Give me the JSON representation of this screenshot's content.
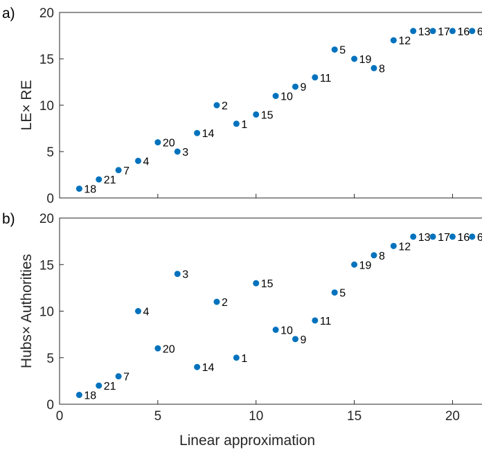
{
  "chart_data": [
    {
      "type": "scatter",
      "panel_label": "a)",
      "xlabel": "",
      "ylabel": "LE× RE",
      "xlim": [
        0,
        21.5
      ],
      "ylim": [
        0,
        20
      ],
      "x_ticks": [
        0,
        5,
        10,
        15,
        20
      ],
      "y_ticks": [
        0,
        5,
        10,
        15,
        20
      ],
      "grid": false,
      "marker_color": "#0072BD",
      "points": [
        {
          "x": 1,
          "y": 1,
          "label": "18"
        },
        {
          "x": 2,
          "y": 2,
          "label": "21"
        },
        {
          "x": 3,
          "y": 3,
          "label": "7"
        },
        {
          "x": 4,
          "y": 4,
          "label": "4"
        },
        {
          "x": 5,
          "y": 6,
          "label": "20"
        },
        {
          "x": 6,
          "y": 5,
          "label": "3"
        },
        {
          "x": 7,
          "y": 7,
          "label": "14"
        },
        {
          "x": 8,
          "y": 10,
          "label": "2"
        },
        {
          "x": 9,
          "y": 8,
          "label": "1"
        },
        {
          "x": 10,
          "y": 9,
          "label": "15"
        },
        {
          "x": 11,
          "y": 11,
          "label": "10"
        },
        {
          "x": 12,
          "y": 12,
          "label": "9"
        },
        {
          "x": 13,
          "y": 13,
          "label": "11"
        },
        {
          "x": 14,
          "y": 16,
          "label": "5"
        },
        {
          "x": 15,
          "y": 15,
          "label": "19"
        },
        {
          "x": 16,
          "y": 14,
          "label": "8"
        },
        {
          "x": 17,
          "y": 17,
          "label": "12"
        },
        {
          "x": 18,
          "y": 18,
          "label": "13"
        },
        {
          "x": 19,
          "y": 18,
          "label": "17"
        },
        {
          "x": 20,
          "y": 18,
          "label": "16"
        },
        {
          "x": 21,
          "y": 18,
          "label": "6"
        }
      ]
    },
    {
      "type": "scatter",
      "panel_label": "b)",
      "xlabel": "Linear approximation",
      "ylabel": "Hubs× Authorities",
      "xlim": [
        0,
        21.5
      ],
      "ylim": [
        0,
        20
      ],
      "x_ticks": [
        0,
        5,
        10,
        15,
        20
      ],
      "y_ticks": [
        0,
        5,
        10,
        15,
        20
      ],
      "grid": false,
      "marker_color": "#0072BD",
      "points": [
        {
          "x": 1,
          "y": 1,
          "label": "18"
        },
        {
          "x": 2,
          "y": 2,
          "label": "21"
        },
        {
          "x": 3,
          "y": 3,
          "label": "7"
        },
        {
          "x": 4,
          "y": 10,
          "label": "4"
        },
        {
          "x": 5,
          "y": 6,
          "label": "20"
        },
        {
          "x": 6,
          "y": 14,
          "label": "3"
        },
        {
          "x": 7,
          "y": 4,
          "label": "14"
        },
        {
          "x": 8,
          "y": 11,
          "label": "2"
        },
        {
          "x": 9,
          "y": 5,
          "label": "1"
        },
        {
          "x": 10,
          "y": 13,
          "label": "15"
        },
        {
          "x": 11,
          "y": 8,
          "label": "10"
        },
        {
          "x": 12,
          "y": 7,
          "label": "9"
        },
        {
          "x": 13,
          "y": 9,
          "label": "11"
        },
        {
          "x": 14,
          "y": 12,
          "label": "5"
        },
        {
          "x": 15,
          "y": 15,
          "label": "19"
        },
        {
          "x": 16,
          "y": 16,
          "label": "8"
        },
        {
          "x": 17,
          "y": 17,
          "label": "12"
        },
        {
          "x": 18,
          "y": 18,
          "label": "13"
        },
        {
          "x": 19,
          "y": 18,
          "label": "17"
        },
        {
          "x": 20,
          "y": 18,
          "label": "16"
        },
        {
          "x": 21,
          "y": 18,
          "label": "6"
        }
      ]
    }
  ]
}
